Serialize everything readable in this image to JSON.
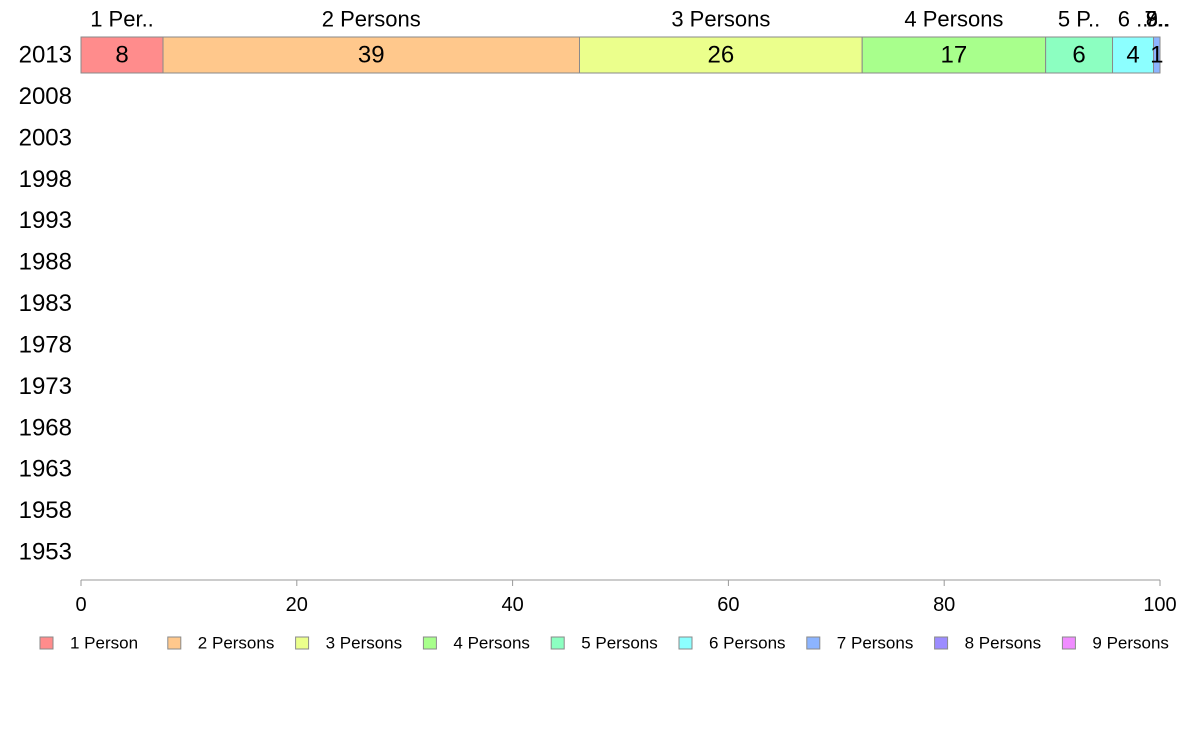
{
  "chart_data": {
    "type": "bar",
    "orientation": "horizontal",
    "stacked": true,
    "categories": [
      "2013",
      "2008",
      "2003",
      "1998",
      "1993",
      "1988",
      "1983",
      "1978",
      "1973",
      "1968",
      "1963",
      "1958",
      "1953"
    ],
    "series": [
      {
        "name": "1 Person",
        "color": "#ff8c8c",
        "values": [
          7.6,
          null,
          null,
          null,
          null,
          null,
          null,
          null,
          null,
          null,
          null,
          null,
          null
        ]
      },
      {
        "name": "2 Persons",
        "color": "#ffc88c",
        "values": [
          38.6,
          null,
          null,
          null,
          null,
          null,
          null,
          null,
          null,
          null,
          null,
          null,
          null
        ]
      },
      {
        "name": "3 Persons",
        "color": "#ebff8c",
        "values": [
          26.2,
          null,
          null,
          null,
          null,
          null,
          null,
          null,
          null,
          null,
          null,
          null,
          null
        ]
      },
      {
        "name": "4 Persons",
        "color": "#a8ff8c",
        "values": [
          17.0,
          null,
          null,
          null,
          null,
          null,
          null,
          null,
          null,
          null,
          null,
          null,
          null
        ]
      },
      {
        "name": "5 Persons",
        "color": "#8cffc1",
        "values": [
          6.2,
          null,
          null,
          null,
          null,
          null,
          null,
          null,
          null,
          null,
          null,
          null,
          null
        ]
      },
      {
        "name": "6 Persons",
        "color": "#8cffff",
        "values": [
          3.8,
          null,
          null,
          null,
          null,
          null,
          null,
          null,
          null,
          null,
          null,
          null,
          null
        ]
      },
      {
        "name": "7 Persons",
        "color": "#8cb4ff",
        "values": [
          0.6,
          null,
          null,
          null,
          null,
          null,
          null,
          null,
          null,
          null,
          null,
          null,
          null
        ]
      },
      {
        "name": "8 Persons",
        "color": "#9c8cff",
        "values": [
          0,
          null,
          null,
          null,
          null,
          null,
          null,
          null,
          null,
          null,
          null,
          null,
          null
        ]
      },
      {
        "name": "9 Persons",
        "color": "#f08cff",
        "values": [
          0,
          null,
          null,
          null,
          null,
          null,
          null,
          null,
          null,
          null,
          null,
          null,
          null
        ]
      }
    ],
    "segment_labels": [
      "8",
      "39",
      "26",
      "17",
      "6",
      "4",
      "1",
      "",
      ""
    ],
    "top_labels": [
      "1 Per..",
      "2 Persons",
      "3 Persons",
      "4 Persons",
      "5 P..",
      "6 ..",
      "7..",
      "8..",
      "9.."
    ],
    "xlim": [
      0,
      100
    ],
    "xticks": [
      "0",
      "20",
      "40",
      "60",
      "80",
      "100"
    ],
    "xtick_values": [
      0,
      20,
      40,
      60,
      80,
      100
    ],
    "legend_position": "bottom",
    "grid": false
  }
}
